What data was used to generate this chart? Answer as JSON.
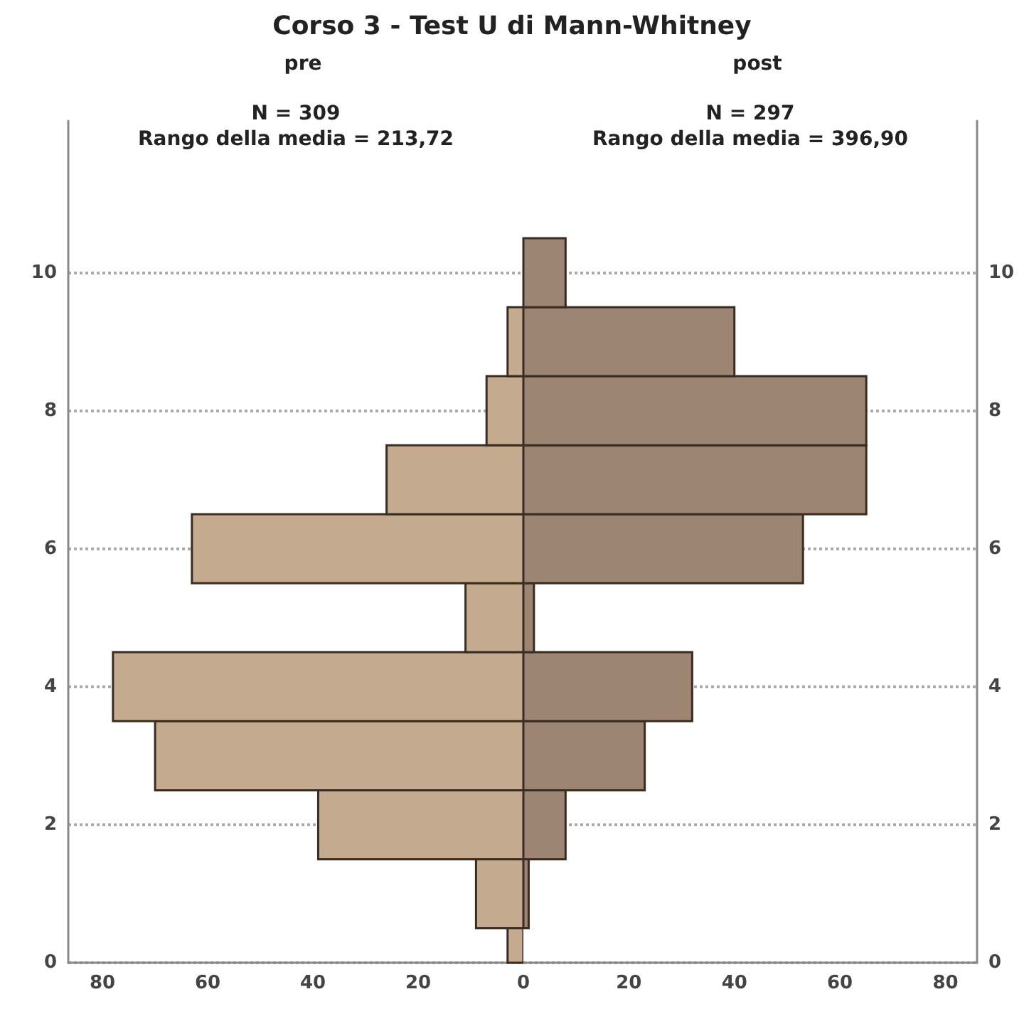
{
  "chart_data": [
    {
      "type": "histogram",
      "orientation": "horizontal",
      "title": "Corso 3 - Test U di Mann-Whitney",
      "subtitle": "pre",
      "annotations": [
        "N = 309",
        "Rango della media = 213,72"
      ],
      "bins": [
        0,
        0.5,
        1.5,
        2.5,
        3.5,
        4.5,
        5.5,
        6.5,
        7.5,
        8.5,
        9.5
      ],
      "values": [
        3,
        9,
        39,
        70,
        78,
        11,
        63,
        26,
        7,
        3
      ],
      "color": "#c4ab8f",
      "xlim": [
        86.5,
        0
      ],
      "xticks": [
        80,
        60,
        40,
        20
      ],
      "ylim": [
        0,
        12.2
      ],
      "yticks": [
        0,
        2,
        4,
        6,
        8,
        10
      ],
      "grid": "y"
    },
    {
      "type": "histogram",
      "orientation": "horizontal",
      "subtitle": "post",
      "annotations": [
        "N = 297",
        "Rango della media = 396,90"
      ],
      "bins": [
        0.5,
        1.5,
        2.5,
        3.5,
        4.5,
        5.5,
        6.5,
        7.5,
        8.5,
        9.5,
        10.5
      ],
      "values": [
        1,
        8,
        23,
        32,
        2,
        53,
        65,
        65,
        40,
        8
      ],
      "color": "#9c8573",
      "xlim": [
        0,
        86
      ],
      "xticks": [
        0,
        20,
        40,
        60,
        80
      ],
      "ylim": [
        0,
        12.2
      ],
      "yticks": [
        0,
        2,
        4,
        6,
        8,
        10
      ],
      "grid": "y"
    }
  ]
}
